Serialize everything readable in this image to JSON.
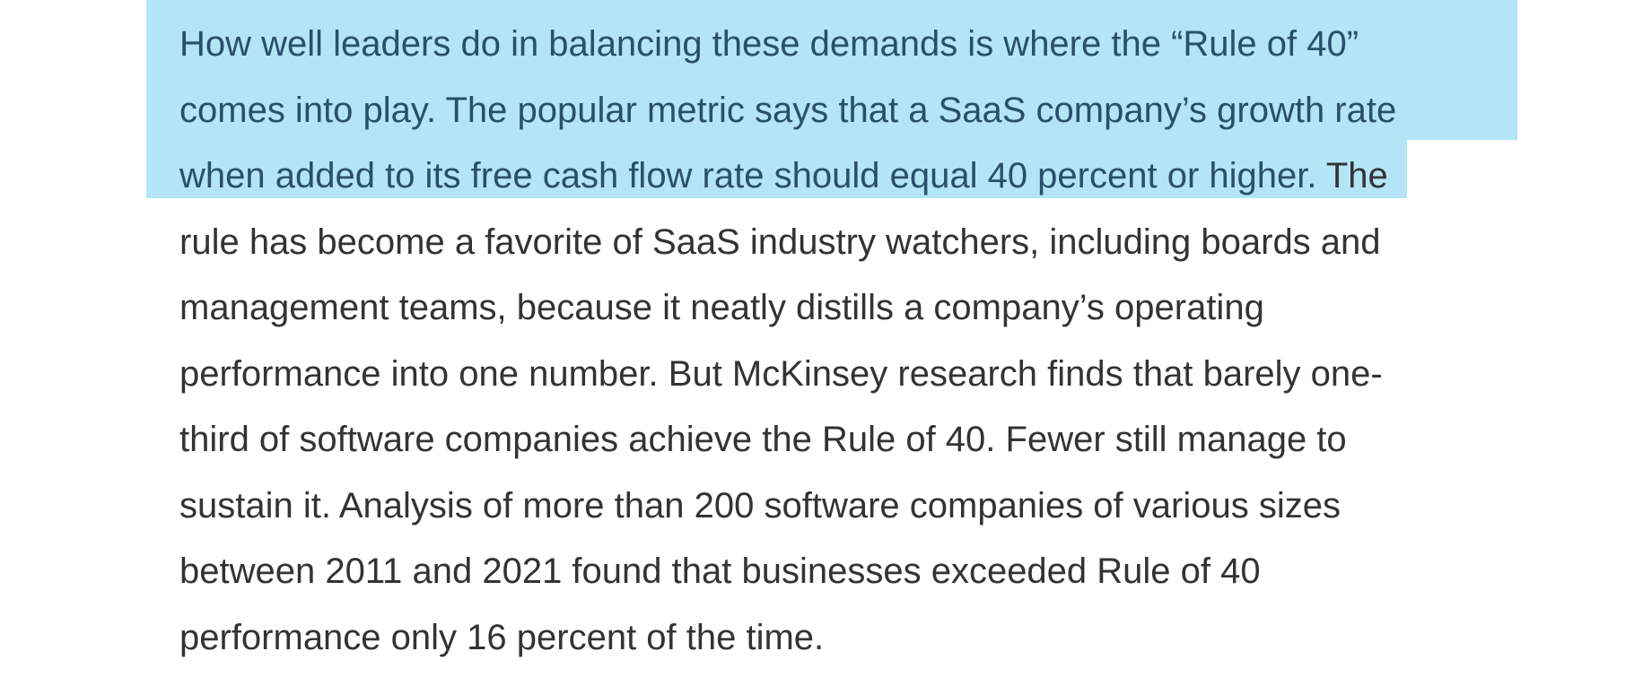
{
  "article": {
    "selected_lines": [
      "How well leaders do in balancing these demands is where the “Rule of 40”",
      "comes into play. The popular metric says that a SaaS company’s growth rate",
      "when added to its free cash flow rate should equal 40 percent or higher."
    ],
    "line3_tail": " The",
    "lines": [
      "rule has become a favorite of SaaS industry watchers, including boards and",
      "management teams, because it neatly distills a company’s operating",
      "performance into one number. But McKinsey research finds that barely one-",
      "third of software companies achieve the Rule of 40. Fewer still manage to",
      "sustain it. Analysis of more than 200 software companies of various sizes",
      "between 2011 and 2021 found that businesses exceeded Rule of 40",
      "performance only 16 percent of the time."
    ]
  },
  "colors": {
    "selection": "#b3e5f7",
    "selected_text": "#2b4f6a",
    "text": "#333333"
  }
}
